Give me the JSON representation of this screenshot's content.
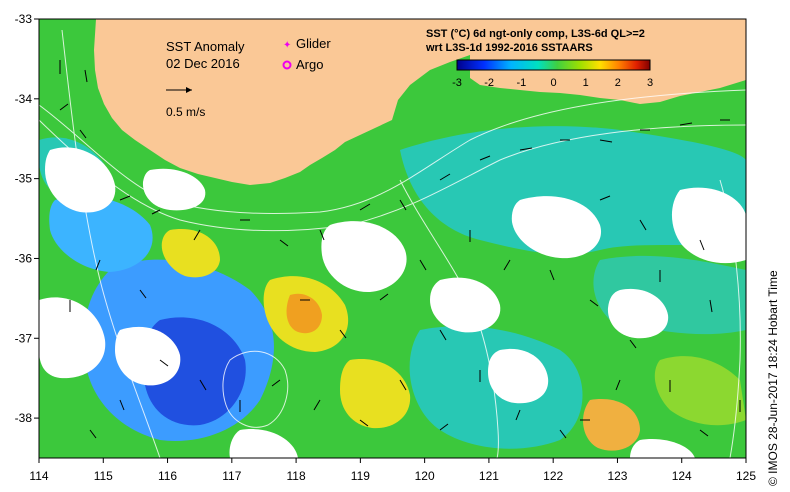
{
  "title": "SST Anomaly",
  "date": "02 Dec 2016",
  "legend": {
    "glider_label": "Glider",
    "argo_label": "Argo",
    "glider_color": "#ee00ee",
    "argo_color": "#ee00ee",
    "vector_scale_label": "0.5 m/s"
  },
  "product": {
    "line1": "SST (°C) 6d ngt-only comp, L3S-6d QL>=2",
    "line2": "wrt L3S-1d 1992-2016 SSTAARS"
  },
  "colorbar": {
    "ticks": [
      "-3",
      "-2",
      "-1",
      "0",
      "1",
      "2",
      "3"
    ],
    "min": -3,
    "max": 3,
    "colors": [
      "#00008c",
      "#0030ff",
      "#00b4ff",
      "#00e0a0",
      "#40d040",
      "#a0e000",
      "#ffe000",
      "#ff8000",
      "#e02000",
      "#800000"
    ]
  },
  "axes": {
    "x_ticks": [
      "114",
      "115",
      "116",
      "117",
      "118",
      "119",
      "120",
      "121",
      "122",
      "123",
      "124",
      "125"
    ],
    "y_ticks": [
      "-33",
      "-34",
      "-35",
      "-36",
      "-37",
      "-38"
    ],
    "lon_range": [
      114,
      125
    ],
    "lat_range": [
      -38.5,
      -33
    ]
  },
  "colors": {
    "land": "#fac896",
    "ocean_green": "#3cc83c",
    "ocean_cyan": "#28c8b4",
    "ocean_blue": "#3c8cff",
    "cloud": "#ffffff"
  },
  "credit": "© IMOS 28-Jun-2017 18:24 Hobart Time"
}
